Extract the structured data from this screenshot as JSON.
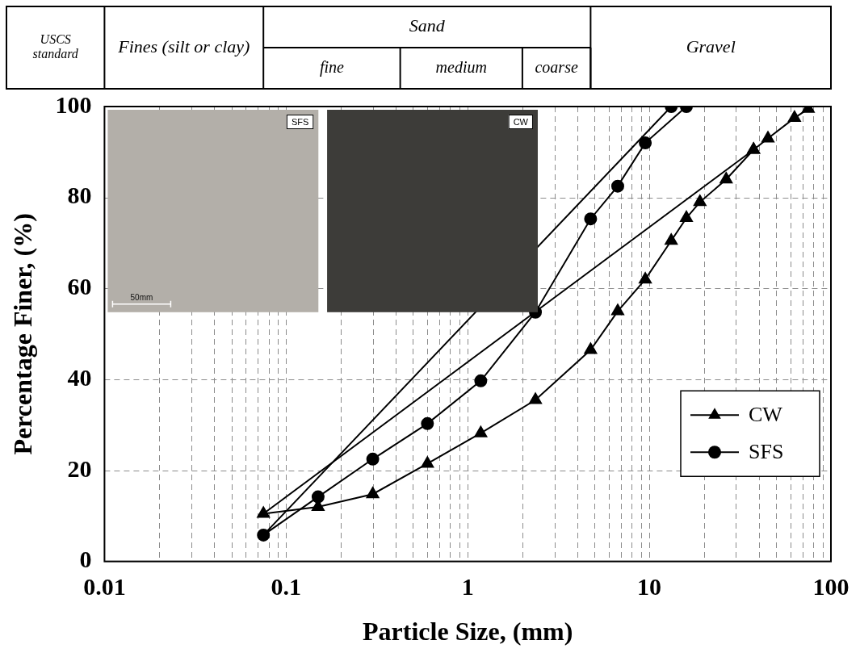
{
  "chart_data": {
    "type": "scatter",
    "x_label": "Particle Size, (mm)",
    "y_label": "Percentage Finer, (%)",
    "log": "x",
    "grid": true,
    "legend": "right",
    "xlim": [
      0.01,
      100
    ],
    "xticks": [
      0.01,
      0.1,
      1,
      10,
      100
    ],
    "ylim": [
      0,
      100
    ],
    "yticks": [
      0,
      20,
      40,
      60,
      80,
      100
    ],
    "series": [
      {
        "name": "CW",
        "color": "#000000",
        "marker": "triangle",
        "line_style": "solid",
        "x": [
          37.5,
          0.075,
          0.15,
          0.3,
          0.6,
          1.18,
          2.36,
          4.75,
          6.7,
          9.5,
          13.2,
          16,
          19,
          26.5,
          37.5,
          45,
          63,
          75
        ],
        "values": [
          90.5,
          10.5,
          12,
          14.8,
          21.5,
          28.2,
          35.5,
          46.5,
          55,
          62,
          70.5,
          75.5,
          79,
          84,
          90.5,
          93,
          97.5,
          99.5
        ]
      },
      {
        "name": "SFS",
        "color": "#000000",
        "marker": "circle",
        "line_style": "solid",
        "x": [
          13.2,
          0.075,
          0.15,
          0.3,
          0.6,
          1.18,
          2.36,
          4.75,
          6.7,
          9.5,
          16
        ],
        "values": [
          100,
          5.8,
          14.2,
          22.5,
          30.3,
          39.7,
          54.8,
          75.3,
          82.5,
          92,
          100
        ]
      }
    ],
    "header": {
      "label": "USCS standard",
      "bands": [
        {
          "text": "Fines (silt or clay)",
          "from": 0.01,
          "to": 0.075
        },
        {
          "text": "Sand",
          "from": 0.075,
          "to": 4.75,
          "sub": [
            {
              "text": "fine",
              "from": 0.075,
              "to": 0.425
            },
            {
              "text": "medium",
              "from": 0.425,
              "to": 2
            },
            {
              "text": "coarse",
              "from": 2,
              "to": 4.75
            }
          ]
        },
        {
          "text": "Gravel",
          "from": 4.75,
          "to": 100
        }
      ]
    },
    "insets": [
      {
        "text": "SFS",
        "color": "#b3afa9"
      },
      {
        "text": "CW",
        "color": "#3d3c39"
      }
    ],
    "scale_bar": "50mm"
  }
}
